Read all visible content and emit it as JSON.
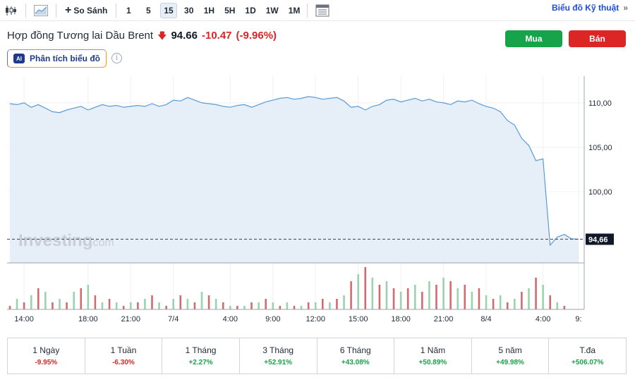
{
  "toolbar": {
    "compare_label": "So Sánh",
    "timeframes": [
      "1",
      "5",
      "15",
      "30",
      "1H",
      "5H",
      "1D",
      "1W",
      "1M"
    ],
    "active_timeframe": "15",
    "technical_link": "Biểu đồ Kỹ thuật",
    "technical_arrow": "»"
  },
  "header": {
    "title": "Hợp đồng Tương lai Dầu Brent",
    "price": "94.66",
    "change": "-10.47",
    "change_pct": "(-9.96%)",
    "buy_label": "Mua",
    "sell_label": "Bán",
    "ai_badge": "AI",
    "ai_label": "Phân tích biểu đồ",
    "info_glyph": "i"
  },
  "chart_data": {
    "type": "area",
    "watermark": "Investing",
    "watermark_suffix": ".com",
    "current_price_label": "94,66",
    "current_price": 94.66,
    "y_ticks": [
      {
        "label": "110,00",
        "value": 110
      },
      {
        "label": "105,00",
        "value": 105
      },
      {
        "label": "100,00",
        "value": 100
      }
    ],
    "x_labels": [
      "14:00",
      "18:00",
      "21:00",
      "7/4",
      "4:00",
      "9:00",
      "12:00",
      "15:00",
      "18:00",
      "21:00",
      "8/4",
      "4:00",
      "9:"
    ],
    "x_label_index": [
      2,
      11,
      17,
      23,
      31,
      37,
      43,
      49,
      55,
      61,
      67,
      75,
      80
    ],
    "price_series": [
      109.9,
      109.8,
      110.0,
      109.5,
      109.8,
      109.4,
      109.0,
      108.9,
      109.2,
      109.4,
      109.6,
      109.2,
      109.5,
      109.8,
      109.6,
      109.7,
      109.5,
      109.6,
      109.7,
      109.6,
      109.9,
      109.6,
      109.8,
      110.3,
      110.2,
      110.6,
      110.3,
      110.0,
      109.9,
      109.8,
      109.6,
      109.5,
      109.7,
      109.8,
      109.5,
      109.8,
      110.1,
      110.3,
      110.5,
      110.6,
      110.4,
      110.5,
      110.7,
      110.6,
      110.4,
      110.5,
      110.6,
      110.2,
      109.5,
      109.6,
      109.2,
      109.6,
      109.8,
      110.3,
      110.4,
      110.1,
      110.3,
      110.5,
      110.2,
      110.4,
      110.1,
      110.0,
      109.8,
      110.2,
      110.1,
      110.3,
      109.9,
      109.6,
      109.4,
      109.0,
      108.0,
      107.5,
      106.0,
      105.2,
      103.5,
      103.7,
      94.0,
      94.9,
      95.2,
      94.7,
      94.66
    ],
    "volume_series": [
      1,
      3,
      2,
      4,
      6,
      5,
      2,
      3,
      2,
      5,
      6,
      7,
      4,
      2,
      3,
      2,
      1,
      2,
      2,
      3,
      4,
      2,
      1,
      3,
      4,
      3,
      2,
      5,
      4,
      3,
      2,
      1,
      1,
      1,
      2,
      2,
      3,
      2,
      1,
      2,
      1,
      1,
      2,
      2,
      3,
      2,
      3,
      4,
      8,
      10,
      12,
      9,
      7,
      8,
      6,
      5,
      6,
      7,
      5,
      8,
      7,
      9,
      8,
      6,
      7,
      5,
      6,
      4,
      3,
      4,
      2,
      3,
      5,
      6,
      9,
      7,
      4,
      2,
      1,
      0,
      0
    ],
    "volume_colors": [
      "r",
      "g",
      "r",
      "g",
      "r",
      "g",
      "r",
      "g",
      "r",
      "g",
      "r",
      "g",
      "r",
      "g",
      "r",
      "g",
      "r",
      "g",
      "r",
      "g",
      "r",
      "g",
      "r",
      "g",
      "r",
      "g",
      "r",
      "g",
      "r",
      "g",
      "r",
      "g",
      "r",
      "g",
      "r",
      "g",
      "r",
      "g",
      "r",
      "g",
      "r",
      "g",
      "r",
      "g",
      "r",
      "g",
      "r",
      "g",
      "r",
      "g",
      "r",
      "g",
      "r",
      "g",
      "r",
      "g",
      "r",
      "g",
      "r",
      "g",
      "r",
      "g",
      "r",
      "g",
      "r",
      "g",
      "r",
      "g",
      "r",
      "g",
      "r",
      "g",
      "r",
      "g",
      "r",
      "g",
      "r",
      "g",
      "r",
      "g",
      "r"
    ],
    "ylim": [
      92,
      113
    ],
    "colors": {
      "line": "#5b9bd5",
      "fill": "#e6eef7",
      "up": "#9bd3ae",
      "down": "#d16b6f"
    }
  },
  "performance": [
    {
      "label": "1 Ngày",
      "value": "-9.95%",
      "dir": "neg"
    },
    {
      "label": "1 Tuần",
      "value": "-6.30%",
      "dir": "neg"
    },
    {
      "label": "1 Tháng",
      "value": "+2.27%",
      "dir": "pos"
    },
    {
      "label": "3 Tháng",
      "value": "+52.91%",
      "dir": "pos"
    },
    {
      "label": "6 Tháng",
      "value": "+43.08%",
      "dir": "pos"
    },
    {
      "label": "1 Năm",
      "value": "+50.89%",
      "dir": "pos"
    },
    {
      "label": "5 năm",
      "value": "+49.98%",
      "dir": "pos"
    },
    {
      "label": "T.đa",
      "value": "+506.07%",
      "dir": "pos"
    }
  ]
}
